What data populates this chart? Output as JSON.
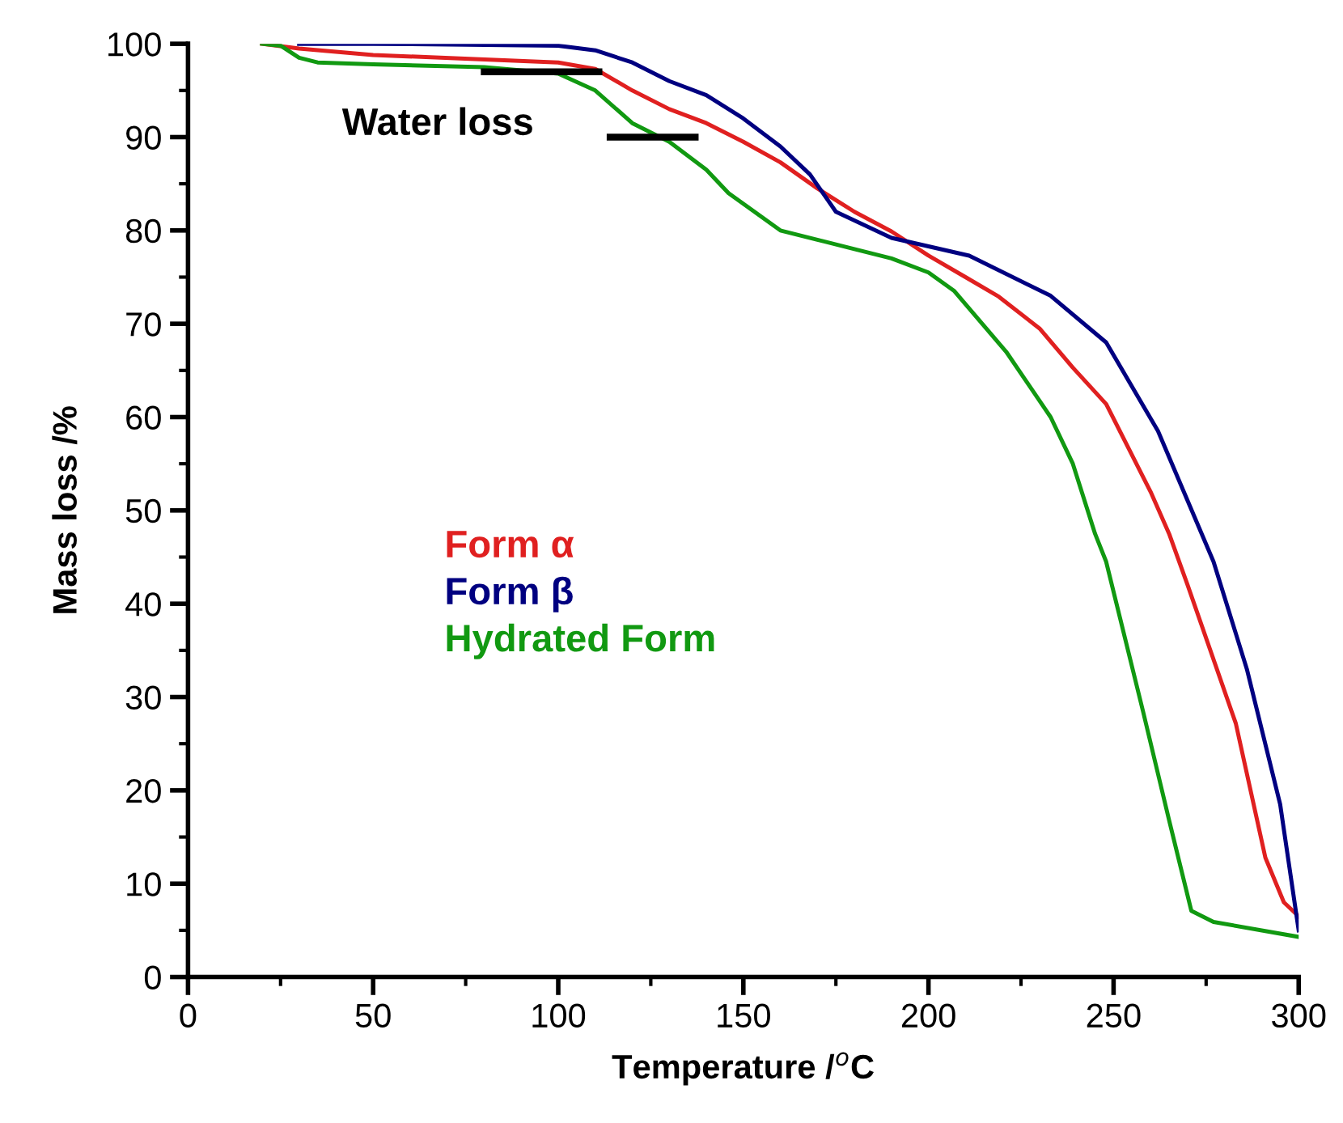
{
  "chart_data": {
    "type": "line",
    "xlabel": "Temperature /$^{o}$C",
    "ylabel": "Mass loss /%",
    "xlim": [
      0,
      300
    ],
    "xticks": [
      0,
      50,
      100,
      150,
      200,
      250,
      300
    ],
    "ylim": [
      0,
      100
    ],
    "yticks": [
      0,
      10,
      20,
      30,
      40,
      50,
      60,
      70,
      80,
      90,
      100
    ],
    "grid": false,
    "legend": "center left",
    "marker": "none",
    "line_style": "solid",
    "annotations": [
      "Water loss"
    ],
    "series": [
      {
        "name": "Form α",
        "color": "#e02020",
        "x": [
          20,
          30,
          50,
          100,
          110,
          120,
          130,
          140,
          150,
          160,
          170,
          180,
          190,
          200,
          210,
          219,
          230,
          239,
          248,
          260,
          265,
          270,
          283,
          291,
          296,
          300
        ],
        "values": [
          100,
          99.5,
          98.8,
          98,
          97.3,
          95,
          93,
          91.5,
          89.5,
          87.3,
          84.5,
          82,
          79.9,
          77.3,
          75,
          72.9,
          69.5,
          65.3,
          61.4,
          52,
          47.5,
          42,
          27.2,
          12.8,
          8,
          6.5
        ]
      },
      {
        "name": "Form β",
        "color": "#000080",
        "x": [
          30,
          50,
          100,
          110,
          120,
          130,
          140,
          150,
          160,
          168,
          175,
          190,
          211,
          233,
          248,
          262,
          277,
          286,
          295,
          300
        ],
        "values": [
          100,
          100,
          99.8,
          99.3,
          98,
          96,
          94.5,
          92,
          89,
          86,
          82,
          79.2,
          77.3,
          73,
          68,
          58.5,
          44.5,
          33,
          18.5,
          5
        ]
      },
      {
        "name": "Hydrated Form",
        "color": "#119911",
        "x": [
          20,
          25,
          30,
          35,
          50,
          80,
          100,
          110,
          120,
          130,
          140,
          146,
          160,
          170,
          180,
          190,
          200,
          207,
          221,
          233,
          239,
          245,
          248,
          258,
          265,
          271,
          277,
          300
        ],
        "values": [
          100,
          99.8,
          98.5,
          98,
          97.8,
          97.5,
          96.8,
          95,
          91.5,
          89.5,
          86.5,
          84,
          80,
          79,
          78,
          77,
          75.5,
          73.5,
          67,
          60,
          55,
          47.5,
          44.5,
          28.4,
          16.8,
          7.1,
          5.9,
          4.3
        ]
      },
      {
        "color": "#000000",
        "x": [
          80,
          111
        ],
        "values": [
          97,
          97
        ]
      },
      {
        "color": "#000000",
        "x": [
          114,
          137
        ],
        "values": [
          90,
          90
        ]
      }
    ]
  }
}
